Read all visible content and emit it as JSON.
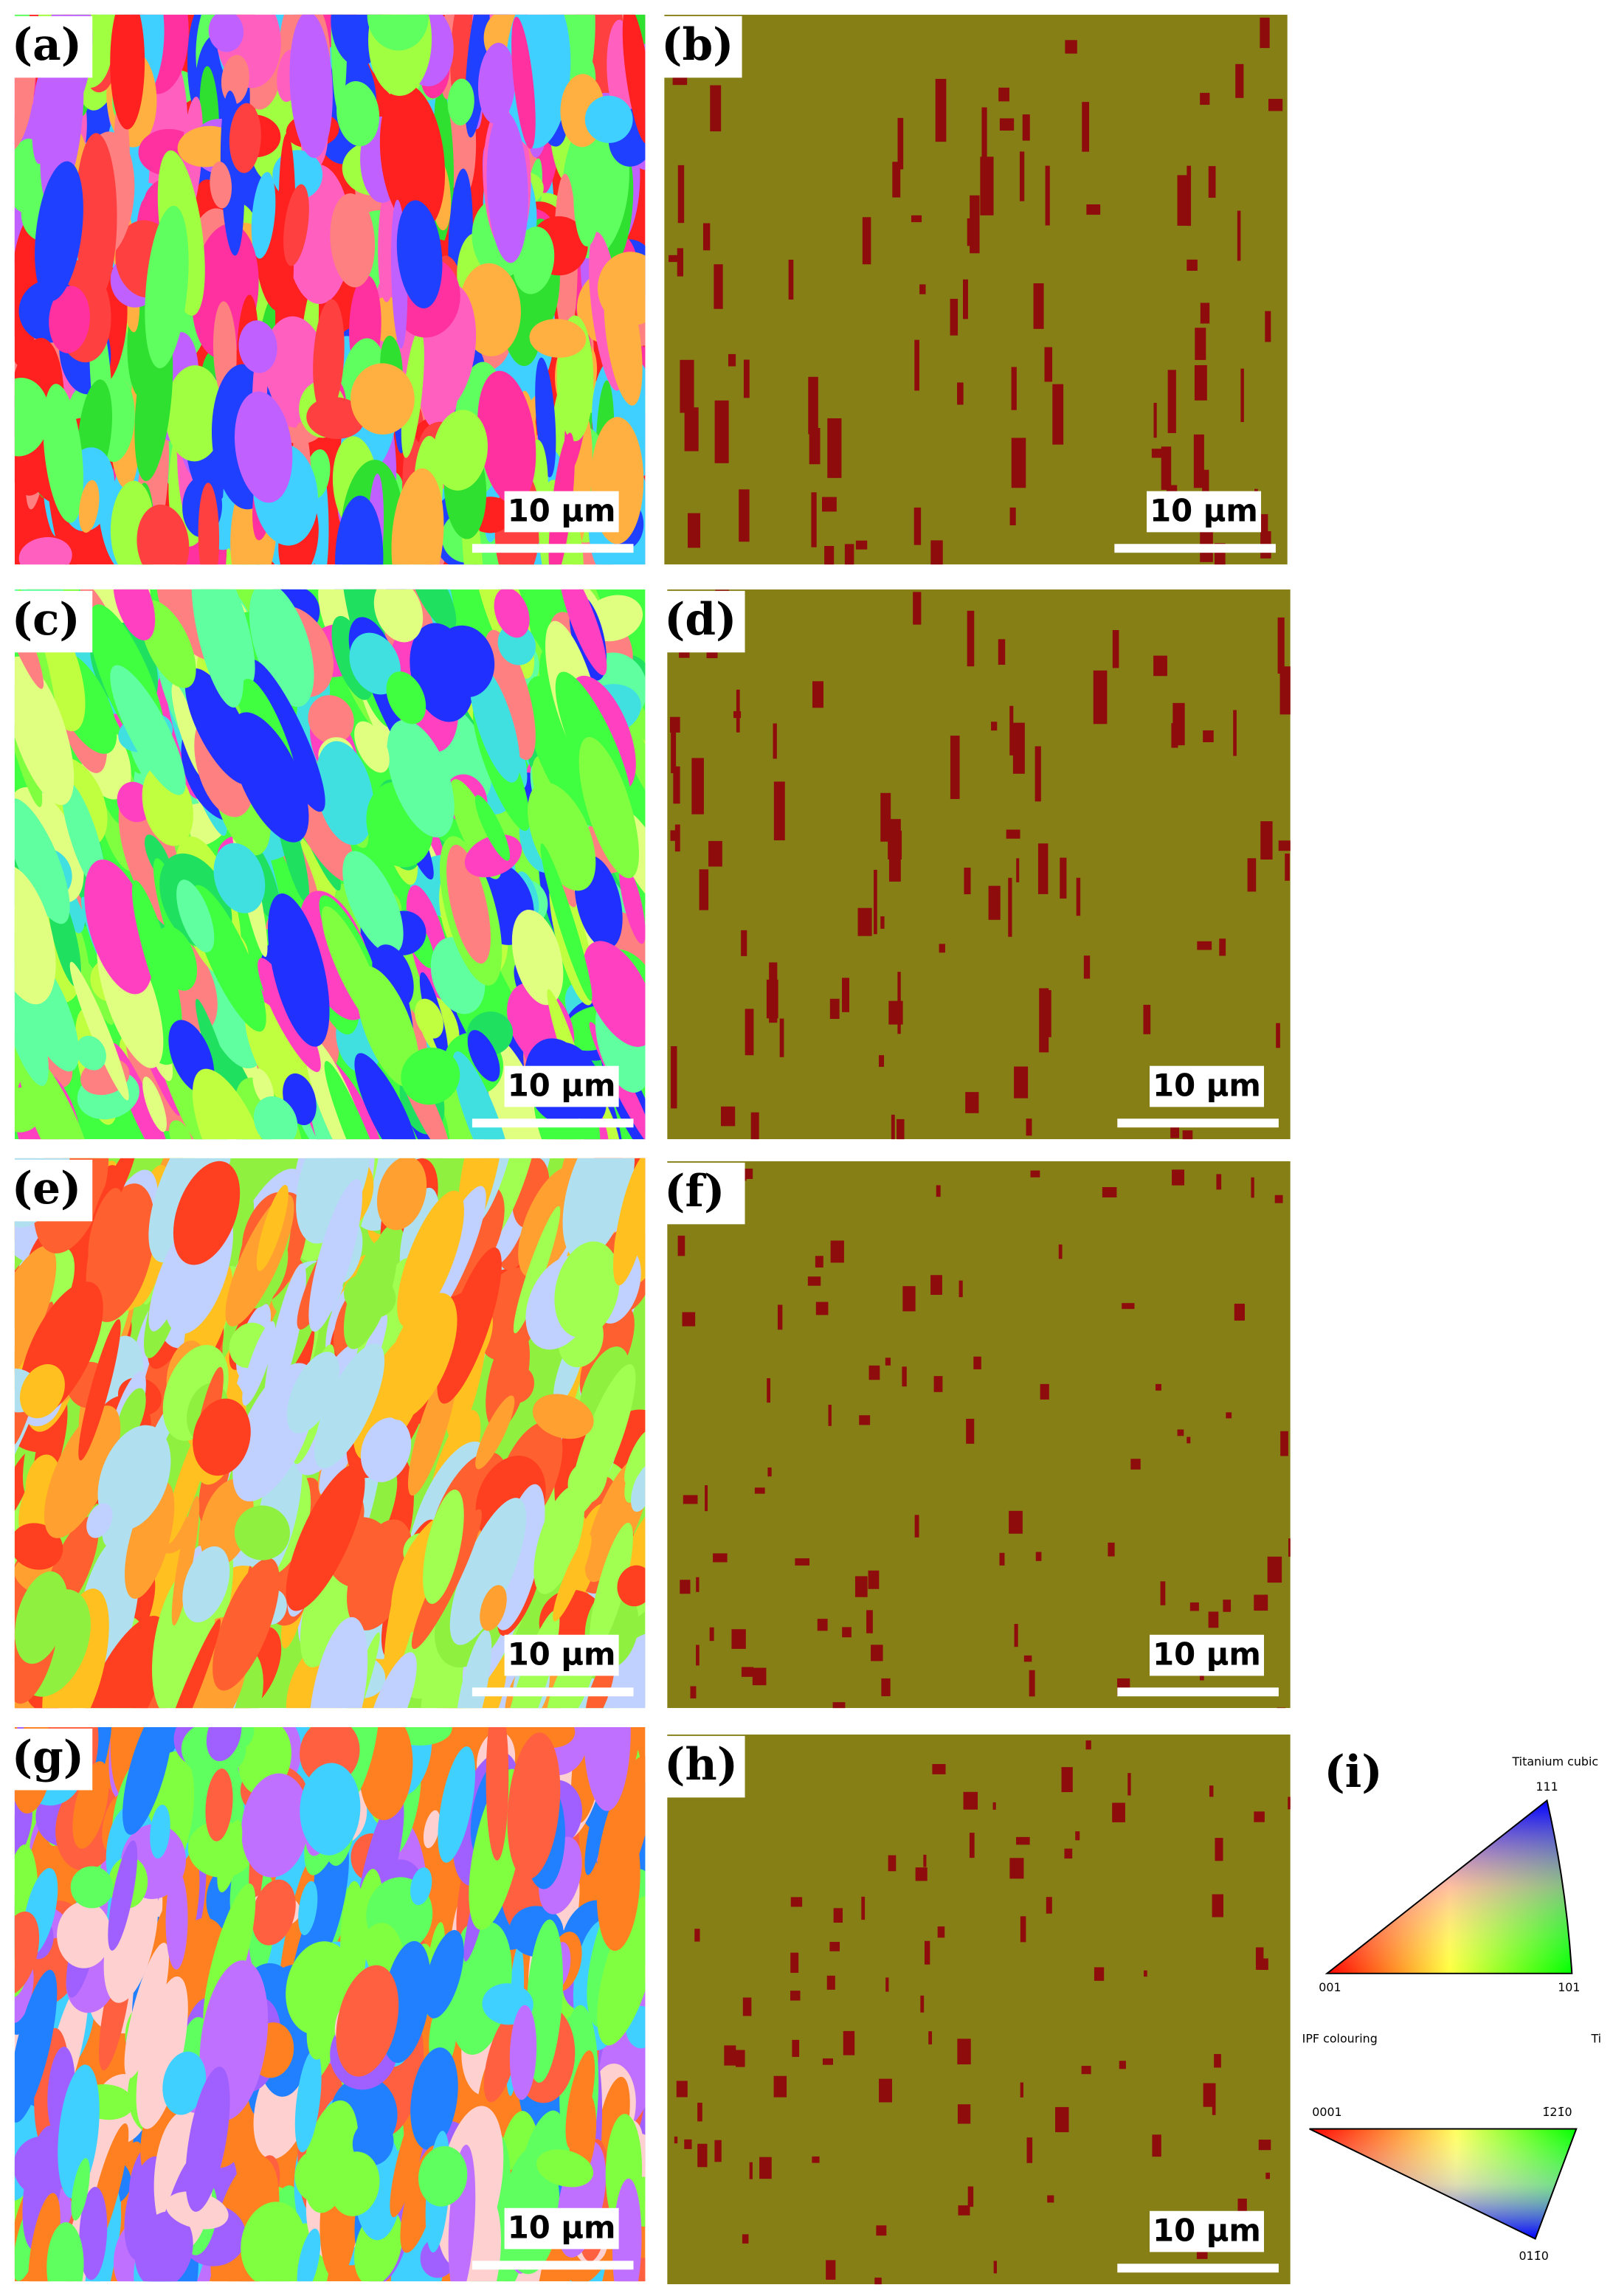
{
  "panels": [
    {
      "label": "(a)",
      "scale_bar": "10 μm"
    },
    {
      "label": "(b)",
      "scale_bar": "10 μm"
    },
    {
      "label": "(c)",
      "scale_bar": "10 μm"
    },
    {
      "label": "(d)",
      "scale_bar": "10 μm"
    },
    {
      "label": "(e)",
      "scale_bar": "10 μm"
    },
    {
      "label": "(f)",
      "scale_bar": "10 μm"
    },
    {
      "label": "(g)",
      "scale_bar": "10 μm"
    },
    {
      "label": "(h)",
      "scale_bar": "10 μm"
    }
  ],
  "legend": {
    "label": "(i)",
    "cubic": {
      "title": "Titanium cubic",
      "vertices": [
        "111",
        "001",
        "101"
      ]
    },
    "hexagonal": {
      "title": "IPF colouring",
      "phase": "Ti",
      "vertices": [
        "0001",
        "1̄21̄0",
        "011̄0"
      ]
    }
  }
}
